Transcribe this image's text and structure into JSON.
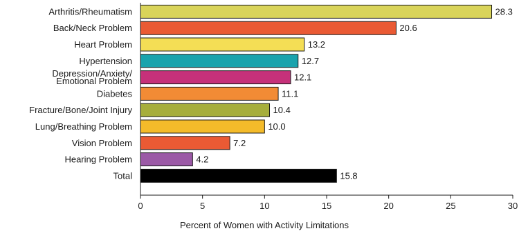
{
  "chart_data": {
    "type": "bar",
    "orientation": "horizontal",
    "categories": [
      "Arthritis/Rheumatism",
      "Back/Neck Problem",
      "Heart Problem",
      "Hypertension",
      "Depression/Anxiety/ Emotional Problem",
      "Diabetes",
      "Fracture/Bone/Joint Injury",
      "Lung/Breathing Problem",
      "Vision Problem",
      "Hearing Problem",
      "Total"
    ],
    "category_lines": [
      [
        "Arthritis/Rheumatism"
      ],
      [
        "Back/Neck Problem"
      ],
      [
        "Heart Problem"
      ],
      [
        "Hypertension"
      ],
      [
        "Depression/Anxiety/",
        "Emotional Problem"
      ],
      [
        "Diabetes"
      ],
      [
        "Fracture/Bone/Joint Injury"
      ],
      [
        "Lung/Breathing Problem"
      ],
      [
        "Vision Problem"
      ],
      [
        "Hearing Problem"
      ],
      [
        "Total"
      ]
    ],
    "values": [
      28.3,
      20.6,
      13.2,
      12.7,
      12.1,
      11.1,
      10.4,
      10.0,
      7.2,
      4.2,
      15.8
    ],
    "value_labels": [
      "28.3",
      "20.6",
      "13.2",
      "12.7",
      "12.1",
      "11.1",
      "10.4",
      "10.0",
      "7.2",
      "4.2",
      "15.8"
    ],
    "colors": [
      "#d9d45a",
      "#ea5a34",
      "#f4de55",
      "#1aa3ad",
      "#c6317a",
      "#f28b35",
      "#a6ae3c",
      "#f4bb2a",
      "#ea5a34",
      "#9b59a6",
      "#000000"
    ],
    "xlabel": "Percent of Women with Activity Limitations",
    "ylabel": "",
    "title": "",
    "xlim": [
      0,
      30
    ],
    "xticks": [
      0,
      5,
      10,
      15,
      20,
      25,
      30
    ],
    "grid": false,
    "legend": "none"
  }
}
